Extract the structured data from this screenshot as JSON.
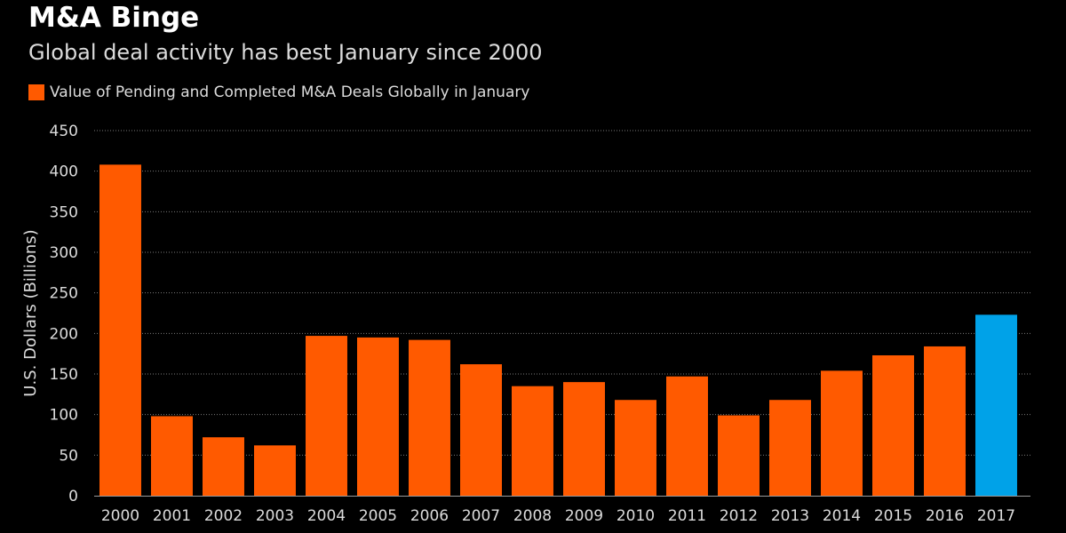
{
  "header": {
    "title": "M&A Binge",
    "subtitle": "Global deal activity has best January since 2000"
  },
  "colors": {
    "background": "#000000",
    "bar": "#ff5a00",
    "highlight": "#00a2e8",
    "text": "#dcdcdc",
    "grid": "#7a7a7a"
  },
  "chart_data": {
    "type": "bar",
    "title": "M&A Binge",
    "subtitle": "Global deal activity has best January since 2000",
    "legend": "Value of Pending and Completed M&A Deals Globally in January",
    "legend_position": "top-left",
    "ylabel": "U.S. Dollars (Billions)",
    "xlabel": "",
    "ylim": [
      0,
      450
    ],
    "yticks": [
      0,
      50,
      100,
      150,
      200,
      250,
      300,
      350,
      400,
      450
    ],
    "grid": true,
    "categories": [
      "2000",
      "2001",
      "2002",
      "2003",
      "2004",
      "2005",
      "2006",
      "2007",
      "2008",
      "2009",
      "2010",
      "2011",
      "2012",
      "2013",
      "2014",
      "2015",
      "2016",
      "2017"
    ],
    "series": [
      {
        "name": "Value of Pending and Completed M&A Deals Globally in January",
        "values": [
          408,
          98,
          72,
          62,
          197,
          195,
          192,
          162,
          135,
          140,
          118,
          147,
          99,
          118,
          154,
          173,
          184,
          223
        ]
      }
    ],
    "highlight_category": "2017"
  }
}
